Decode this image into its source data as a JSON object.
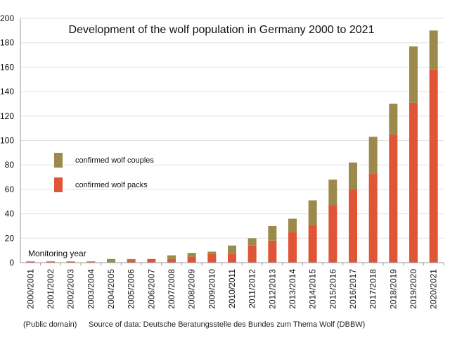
{
  "chart_data": {
    "type": "bar",
    "stacked": true,
    "title": "Development of the wolf population in Germany 2000 to 2021",
    "xlabel": "Monitoring year",
    "ylabel": "",
    "ylim": [
      0,
      200
    ],
    "yticks": [
      0,
      20,
      40,
      60,
      80,
      100,
      120,
      140,
      160,
      180,
      200
    ],
    "grid": true,
    "legend_position": "left",
    "categories": [
      "2000/2001",
      "2001/2002",
      "2002/2003",
      "2003/2004",
      "2004/2005",
      "2005/2006",
      "2006/2007",
      "2007/2008",
      "2008/2009",
      "2009/2010",
      "2010/2011",
      "2011/2012",
      "2012/2013",
      "2013/2014",
      "2014/2015",
      "2015/2016",
      "2016/2017",
      "2017/2018",
      "2018/2019",
      "2019/2020",
      "2020/2021"
    ],
    "series": [
      {
        "name": "confirmed wolf packs",
        "color": "#e05535",
        "values": [
          1,
          1,
          1,
          1,
          0,
          2,
          3,
          3,
          5,
          7,
          7,
          14,
          18,
          25,
          31,
          47,
          60,
          73,
          105,
          131,
          158
        ]
      },
      {
        "name": "confirmed wolf couples",
        "color": "#9b8a4c",
        "values": [
          0,
          0,
          0,
          0,
          3,
          1,
          0,
          3,
          3,
          2,
          7,
          6,
          12,
          11,
          20,
          21,
          22,
          30,
          25,
          46,
          32
        ]
      }
    ]
  },
  "footer": {
    "credit": "(Public domain)",
    "source": "Source of data: Deutsche Beratungsstelle des Bundes zum Thema Wolf (DBBW)"
  }
}
